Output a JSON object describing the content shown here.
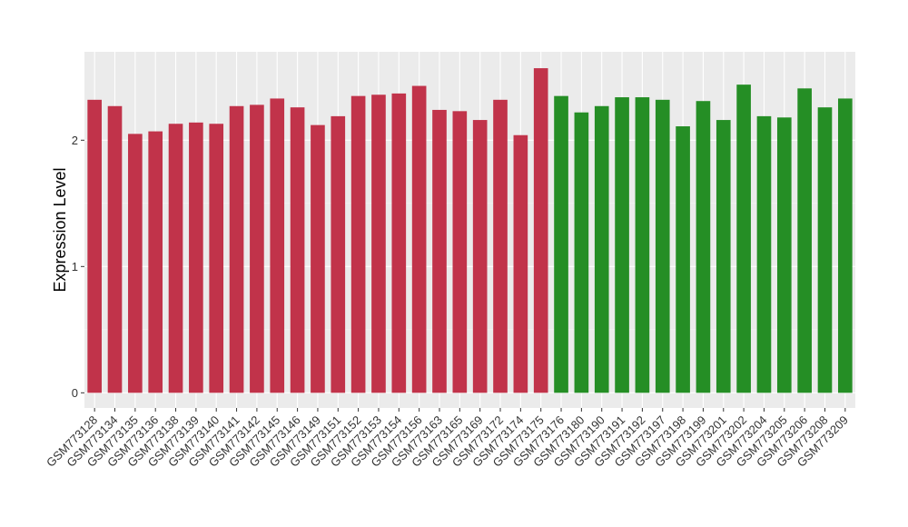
{
  "chart_data": {
    "type": "bar",
    "ylabel": "Expression Level",
    "xlabel": "",
    "ylim": [
      -0.12,
      2.7
    ],
    "yticks": [
      0,
      1,
      2
    ],
    "grid": true,
    "background": "#ebebeb",
    "colors": {
      "group1": "#c1334a",
      "group2": "#258e25"
    },
    "categories": [
      "GSM773128",
      "GSM773134",
      "GSM773135",
      "GSM773136",
      "GSM773138",
      "GSM773139",
      "GSM773140",
      "GSM773141",
      "GSM773142",
      "GSM773145",
      "GSM773146",
      "GSM773149",
      "GSM773151",
      "GSM773152",
      "GSM773153",
      "GSM773154",
      "GSM773156",
      "GSM773163",
      "GSM773165",
      "GSM773169",
      "GSM773172",
      "GSM773174",
      "GSM773175",
      "GSM773176",
      "GSM773180",
      "GSM773190",
      "GSM773191",
      "GSM773192",
      "GSM773197",
      "GSM773198",
      "GSM773199",
      "GSM773201",
      "GSM773202",
      "GSM773204",
      "GSM773205",
      "GSM773206",
      "GSM773208",
      "GSM773209"
    ],
    "values": [
      2.32,
      2.27,
      2.05,
      2.07,
      2.13,
      2.14,
      2.13,
      2.27,
      2.28,
      2.33,
      2.26,
      2.12,
      2.19,
      2.35,
      2.36,
      2.37,
      2.43,
      2.24,
      2.23,
      2.16,
      2.32,
      2.04,
      2.57,
      2.35,
      2.22,
      2.27,
      2.34,
      2.34,
      2.32,
      2.11,
      2.31,
      2.16,
      2.44,
      2.19,
      2.18,
      2.41,
      2.26,
      2.33
    ],
    "groups": [
      1,
      1,
      1,
      1,
      1,
      1,
      1,
      1,
      1,
      1,
      1,
      1,
      1,
      1,
      1,
      1,
      1,
      1,
      1,
      1,
      1,
      1,
      1,
      2,
      2,
      2,
      2,
      2,
      2,
      2,
      2,
      2,
      2,
      2,
      2,
      2,
      2,
      2
    ]
  }
}
